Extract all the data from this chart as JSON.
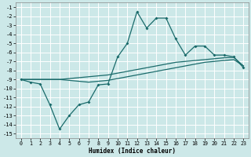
{
  "xlabel": "Humidex (Indice chaleur)",
  "background_color": "#cce8e8",
  "grid_color": "#ffffff",
  "line_color": "#1a6b6b",
  "xlim": [
    -0.5,
    23.5
  ],
  "ylim": [
    -15.5,
    -0.5
  ],
  "xticks": [
    0,
    1,
    2,
    3,
    4,
    5,
    6,
    7,
    8,
    9,
    10,
    11,
    12,
    13,
    14,
    15,
    16,
    17,
    18,
    19,
    20,
    21,
    22,
    23
  ],
  "yticks": [
    -1,
    -2,
    -3,
    -4,
    -5,
    -6,
    -7,
    -8,
    -9,
    -10,
    -11,
    -12,
    -13,
    -14,
    -15
  ],
  "line1_x": [
    0,
    1,
    2,
    3,
    4,
    5,
    6,
    7,
    8,
    9,
    10,
    11,
    12,
    13,
    14,
    15,
    16,
    17,
    18,
    19,
    20,
    21,
    22,
    23
  ],
  "line1_y": [
    -9.0,
    -9.3,
    -9.5,
    -11.8,
    -14.5,
    -13.0,
    -11.8,
    -11.5,
    -9.6,
    -9.5,
    -6.5,
    -5.0,
    -1.5,
    -3.3,
    -2.2,
    -2.2,
    -4.5,
    -6.3,
    -5.3,
    -5.3,
    -6.3,
    -6.3,
    -6.5,
    -7.7
  ],
  "line2_x": [
    0,
    1,
    2,
    3,
    4,
    5,
    6,
    7,
    8,
    9,
    10,
    11,
    12,
    13,
    14,
    15,
    16,
    17,
    18,
    19,
    20,
    21,
    22,
    23
  ],
  "line2_y": [
    -9.0,
    -9.0,
    -9.0,
    -9.0,
    -9.0,
    -8.9,
    -8.8,
    -8.7,
    -8.6,
    -8.5,
    -8.3,
    -8.1,
    -7.9,
    -7.7,
    -7.5,
    -7.3,
    -7.1,
    -7.0,
    -6.9,
    -6.8,
    -6.7,
    -6.6,
    -6.55,
    -7.5
  ],
  "line3_x": [
    0,
    1,
    2,
    3,
    4,
    5,
    6,
    7,
    8,
    9,
    10,
    11,
    12,
    13,
    14,
    15,
    16,
    17,
    18,
    19,
    20,
    21,
    22,
    23
  ],
  "line3_y": [
    -9.0,
    -9.0,
    -9.0,
    -9.0,
    -9.0,
    -9.1,
    -9.2,
    -9.3,
    -9.2,
    -9.1,
    -8.9,
    -8.7,
    -8.5,
    -8.3,
    -8.1,
    -7.9,
    -7.7,
    -7.5,
    -7.3,
    -7.1,
    -7.0,
    -6.9,
    -6.8,
    -7.5
  ]
}
